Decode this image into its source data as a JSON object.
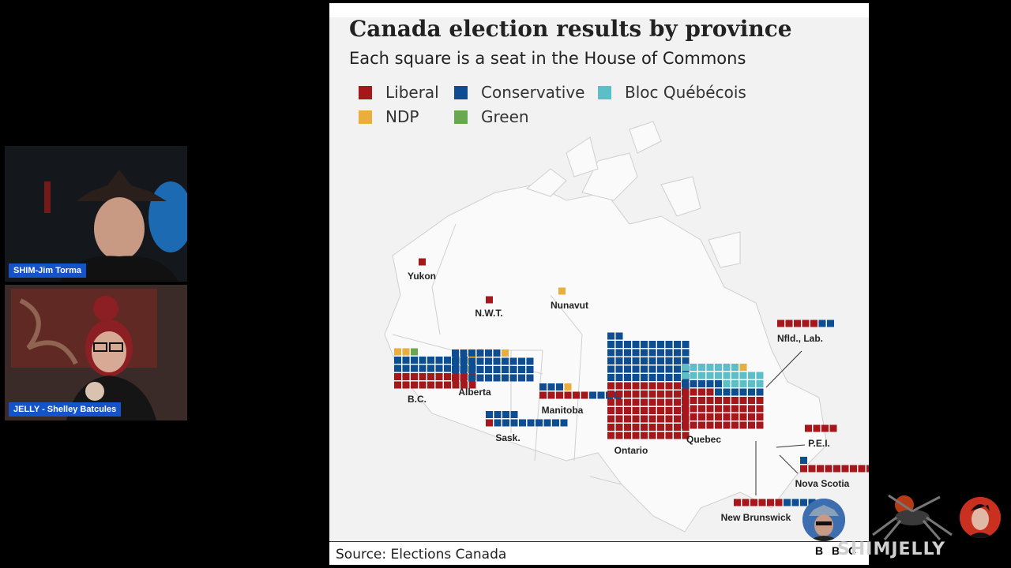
{
  "chart": {
    "title": "Canada election results by province",
    "subtitle": "Each square is a seat in the House of Commons",
    "source": "Source: Elections Canada"
  },
  "legend": [
    {
      "label": "Liberal",
      "color": "#a6171b"
    },
    {
      "label": "Conservative",
      "color": "#0f4d92"
    },
    {
      "label": "Bloc Québécois",
      "color": "#5cbfc8"
    },
    {
      "label": "NDP",
      "color": "#e9ae3b"
    },
    {
      "label": "Green",
      "color": "#6aa84f"
    }
  ],
  "chart_data": {
    "type": "waffle",
    "unit": "seat",
    "parties": [
      "Liberal",
      "Conservative",
      "Bloc Québécois",
      "NDP",
      "Green"
    ],
    "provinces": [
      {
        "name": "Yukon",
        "seats": {
          "Liberal": 1
        }
      },
      {
        "name": "N.W.T.",
        "seats": {
          "Liberal": 1
        }
      },
      {
        "name": "Nunavut",
        "seats": {
          "NDP": 1
        }
      },
      {
        "name": "B.C.",
        "seats": {
          "Liberal": 20,
          "Conservative": 19,
          "NDP": 3,
          "Green": 1
        }
      },
      {
        "name": "Alberta",
        "seats": {
          "Liberal": 2,
          "Conservative": 34,
          "NDP": 1
        }
      },
      {
        "name": "Sask.",
        "seats": {
          "Liberal": 1,
          "Conservative": 13
        }
      },
      {
        "name": "Manitoba",
        "seats": {
          "Liberal": 6,
          "Conservative": 7,
          "NDP": 1
        }
      },
      {
        "name": "Ontario",
        "seats": {
          "Liberal": 69,
          "Conservative": 53
        }
      },
      {
        "name": "Quebec",
        "seats": {
          "Liberal": 44,
          "Conservative": 11,
          "Bloc Québécois": 22,
          "NDP": 1
        }
      },
      {
        "name": "Nfld., Lab.",
        "seats": {
          "Liberal": 5,
          "Conservative": 2
        }
      },
      {
        "name": "P.E.I.",
        "seats": {
          "Liberal": 4
        }
      },
      {
        "name": "Nova Scotia",
        "seats": {
          "Liberal": 9,
          "Conservative": 2
        }
      },
      {
        "name": "New Brunswick",
        "seats": {
          "Liberal": 6,
          "Conservative": 4
        }
      }
    ]
  },
  "participants": [
    {
      "label": "SHIM-Jim Torma"
    },
    {
      "label": "JELLY - Shelley Batcules"
    }
  ],
  "overlay": {
    "brand": "SHIMJELLY",
    "bbc_letters": [
      "B",
      "B",
      "C"
    ]
  }
}
